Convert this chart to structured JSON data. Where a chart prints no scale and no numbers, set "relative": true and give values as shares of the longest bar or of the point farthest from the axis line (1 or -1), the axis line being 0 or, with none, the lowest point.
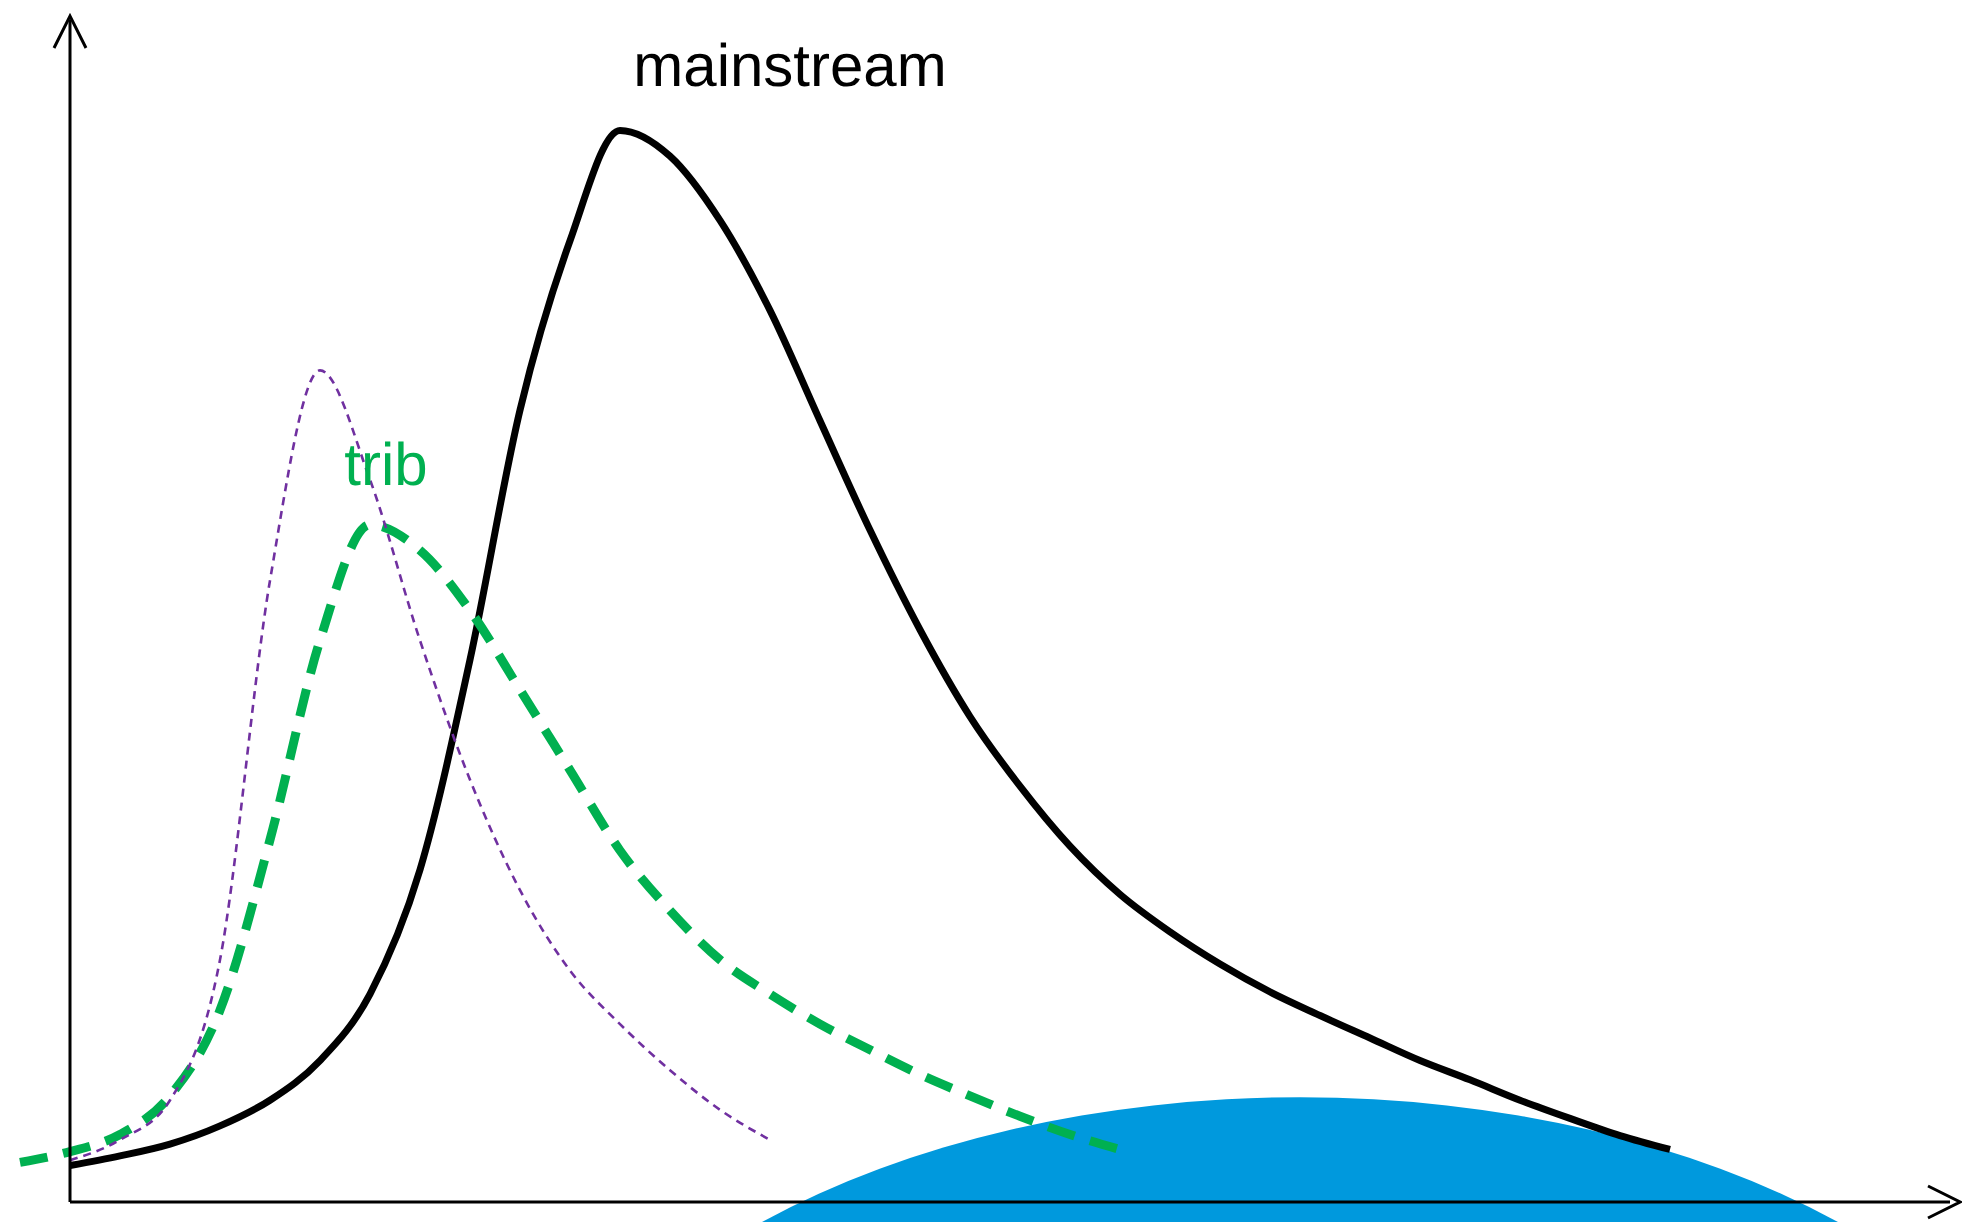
{
  "chart_data": {
    "type": "line",
    "relative": true,
    "marker": "none",
    "categories": [
      null,
      null,
      null,
      null,
      null,
      null,
      null,
      null,
      null,
      null,
      null,
      null,
      null,
      null,
      null,
      null,
      null,
      null,
      null,
      null,
      null,
      null,
      null,
      null,
      null,
      null,
      null,
      null,
      null,
      null,
      null,
      null,
      null,
      null
    ],
    "series": [
      {
        "name": "mainstream",
        "color": "#000000",
        "line_style": "solid",
        "values": [
          null,
          0.034,
          0.043,
          0.054,
          0.071,
          0.095,
          0.132,
          0.194,
          0.31,
          0.506,
          0.739,
          0.897,
          1.0,
          0.976,
          0.916,
          0.832,
          0.729,
          0.627,
          0.534,
          0.453,
          0.388,
          0.332,
          0.287,
          0.252,
          0.222,
          0.196,
          0.174,
          0.153,
          0.132,
          0.114,
          0.095,
          0.078,
          0.062,
          0.049
        ]
      },
      {
        "name": "trib",
        "color": "#00b050",
        "line_style": "dashed",
        "values": [
          0.037,
          0.047,
          0.063,
          0.099,
          0.179,
          0.338,
          0.524,
          0.632,
          0.608,
          0.552,
          0.478,
          0.403,
          0.328,
          0.272,
          0.226,
          0.194,
          0.166,
          0.142,
          0.119,
          0.099,
          0.08,
          0.063,
          0.049,
          null,
          null,
          null,
          null,
          null,
          null,
          null,
          null,
          null,
          null,
          null
        ]
      },
      {
        "color": "#7030a0",
        "line_style": "dashed",
        "values": [
          null,
          0.039,
          0.058,
          0.095,
          0.226,
          0.58,
          0.776,
          0.674,
          0.524,
          0.394,
          0.291,
          0.216,
          0.166,
          0.123,
          0.086,
          0.058,
          null,
          null,
          null,
          null,
          null,
          null,
          null,
          null,
          null,
          null,
          null,
          null,
          null,
          null,
          null,
          null,
          null,
          null
        ]
      }
    ]
  }
}
